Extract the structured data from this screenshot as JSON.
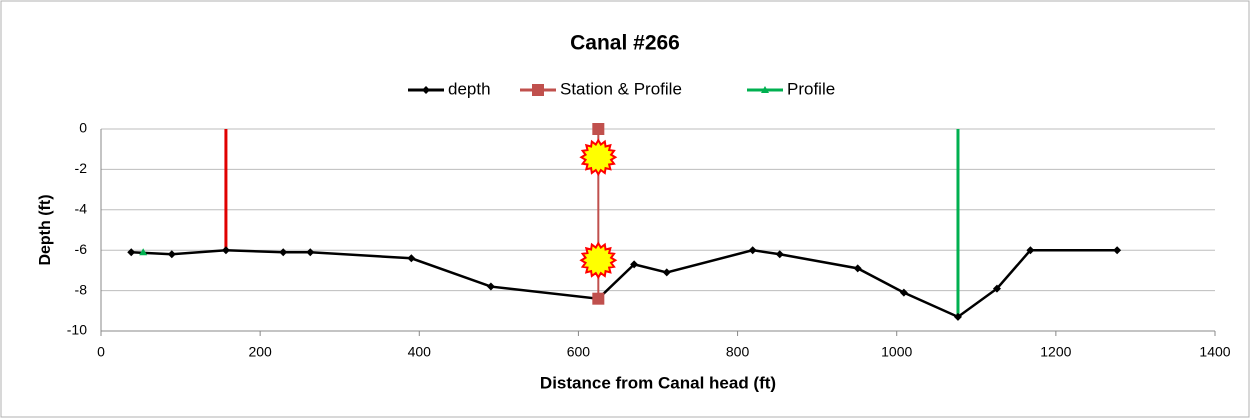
{
  "chart_data": {
    "type": "line",
    "title": "Canal #266",
    "xlabel": "Distance from Canal head (ft)",
    "ylabel": "Depth (ft)",
    "xlim": [
      0,
      1400
    ],
    "xticks": [
      0,
      200,
      400,
      600,
      800,
      1000,
      1200,
      1400
    ],
    "ylim": [
      -10,
      0
    ],
    "yticks": [
      0,
      -2,
      -4,
      -6,
      -8,
      -10
    ],
    "grid": true,
    "legend": "top",
    "series": [
      {
        "name": "depth",
        "color": "#000000",
        "marker": "diamond",
        "x": [
          38,
          89,
          157,
          229,
          263,
          390,
          490,
          625,
          670,
          711,
          819,
          853,
          951,
          1009,
          1077,
          1126,
          1168,
          1277
        ],
        "values": [
          -6.1,
          -6.2,
          -6.0,
          -6.1,
          -6.1,
          -6.4,
          -7.8,
          -8.4,
          -6.7,
          -7.1,
          -6.0,
          -6.2,
          -6.9,
          -8.1,
          -9.3,
          -7.9,
          -6.0,
          -6.0
        ]
      },
      {
        "name": "Station & Profile",
        "color": "#c0504d",
        "marker": "square",
        "x": [
          625,
          625
        ],
        "values": [
          0,
          -8.4
        ]
      },
      {
        "name": "Profile",
        "color": "#00b050",
        "marker": "triangle",
        "x": [
          53
        ],
        "values": [
          -6.1
        ]
      }
    ],
    "vlines": [
      {
        "x": 157,
        "values": [
          0,
          -6.0
        ],
        "color": "#e00000"
      },
      {
        "x": 1077,
        "values": [
          0,
          -9.3
        ],
        "color": "#00b050"
      }
    ],
    "highlights": {
      "color": "#ffff00",
      "x": [
        625,
        625
      ],
      "values": [
        -1.4,
        -6.5
      ]
    }
  }
}
